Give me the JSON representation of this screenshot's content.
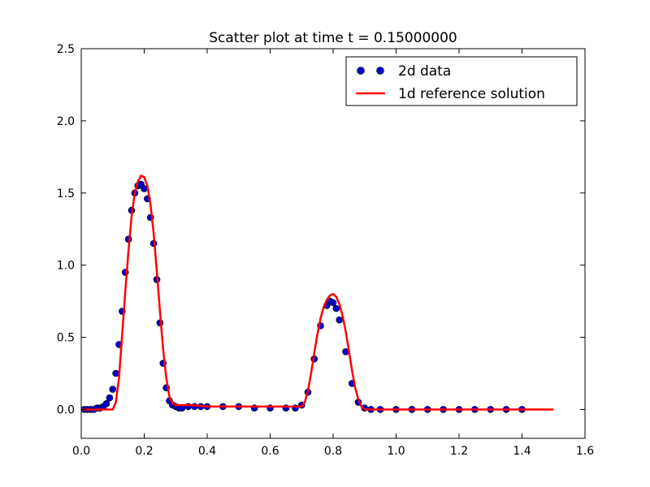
{
  "chart_data": {
    "type": "scatter",
    "title": "Scatter plot at time t =     0.15000000",
    "xlabel": "",
    "ylabel": "",
    "xlim": [
      0.0,
      1.6
    ],
    "ylim": [
      -0.2,
      2.5
    ],
    "xticks": [
      0.0,
      0.2,
      0.4,
      0.6,
      0.8,
      1.0,
      1.2,
      1.4,
      1.6
    ],
    "xtick_labels": [
      "0.0",
      "0.2",
      "0.4",
      "0.6",
      "0.8",
      "1.0",
      "1.2",
      "1.4",
      "1.6"
    ],
    "yticks": [
      0.0,
      0.5,
      1.0,
      1.5,
      2.0,
      2.5
    ],
    "ytick_labels": [
      "0.0",
      "0.5",
      "1.0",
      "1.5",
      "2.0",
      "2.5"
    ],
    "grid": false,
    "legend_position": "top-right",
    "series": [
      {
        "name": "2d data",
        "kind": "scatter",
        "color": "#0000cc",
        "x": [
          0.01,
          0.02,
          0.03,
          0.04,
          0.05,
          0.06,
          0.07,
          0.08,
          0.09,
          0.1,
          0.11,
          0.12,
          0.13,
          0.14,
          0.15,
          0.16,
          0.17,
          0.18,
          0.19,
          0.2,
          0.21,
          0.22,
          0.23,
          0.24,
          0.25,
          0.26,
          0.27,
          0.28,
          0.29,
          0.3,
          0.31,
          0.32,
          0.34,
          0.36,
          0.38,
          0.4,
          0.45,
          0.5,
          0.55,
          0.6,
          0.65,
          0.68,
          0.7,
          0.72,
          0.74,
          0.76,
          0.78,
          0.79,
          0.8,
          0.81,
          0.82,
          0.84,
          0.86,
          0.88,
          0.9,
          0.92,
          0.95,
          1.0,
          1.05,
          1.1,
          1.15,
          1.2,
          1.25,
          1.3,
          1.35,
          1.4
        ],
        "y": [
          0.0,
          0.0,
          0.0,
          0.0,
          0.01,
          0.01,
          0.02,
          0.04,
          0.08,
          0.14,
          0.25,
          0.45,
          0.68,
          0.95,
          1.18,
          1.38,
          1.5,
          1.55,
          1.56,
          1.53,
          1.46,
          1.33,
          1.15,
          0.9,
          0.6,
          0.32,
          0.15,
          0.06,
          0.03,
          0.02,
          0.01,
          0.01,
          0.02,
          0.02,
          0.02,
          0.02,
          0.02,
          0.02,
          0.01,
          0.01,
          0.01,
          0.01,
          0.03,
          0.12,
          0.35,
          0.58,
          0.72,
          0.75,
          0.74,
          0.7,
          0.62,
          0.4,
          0.18,
          0.05,
          0.01,
          0.0,
          0.0,
          0.0,
          0.0,
          0.0,
          0.0,
          0.0,
          0.0,
          0.0,
          0.0,
          0.0
        ]
      },
      {
        "name": "1d reference solution",
        "kind": "line",
        "color": "#ff0000",
        "x": [
          0.0,
          0.05,
          0.08,
          0.1,
          0.11,
          0.12,
          0.13,
          0.14,
          0.15,
          0.16,
          0.17,
          0.18,
          0.19,
          0.2,
          0.21,
          0.22,
          0.23,
          0.24,
          0.25,
          0.26,
          0.27,
          0.28,
          0.29,
          0.3,
          0.35,
          0.4,
          0.5,
          0.6,
          0.65,
          0.7,
          0.71,
          0.72,
          0.73,
          0.74,
          0.75,
          0.76,
          0.77,
          0.78,
          0.79,
          0.8,
          0.81,
          0.82,
          0.83,
          0.84,
          0.85,
          0.86,
          0.87,
          0.88,
          0.89,
          0.9,
          1.0,
          1.2,
          1.4,
          1.5
        ],
        "y": [
          0.0,
          0.0,
          0.0,
          0.0,
          0.05,
          0.22,
          0.52,
          0.82,
          1.1,
          1.34,
          1.5,
          1.58,
          1.62,
          1.61,
          1.55,
          1.42,
          1.22,
          0.96,
          0.68,
          0.42,
          0.22,
          0.09,
          0.04,
          0.03,
          0.03,
          0.02,
          0.02,
          0.02,
          0.02,
          0.02,
          0.05,
          0.13,
          0.25,
          0.39,
          0.52,
          0.63,
          0.71,
          0.76,
          0.79,
          0.8,
          0.78,
          0.73,
          0.65,
          0.54,
          0.41,
          0.27,
          0.15,
          0.07,
          0.02,
          0.0,
          0.0,
          0.0,
          0.0,
          0.0
        ]
      }
    ]
  }
}
